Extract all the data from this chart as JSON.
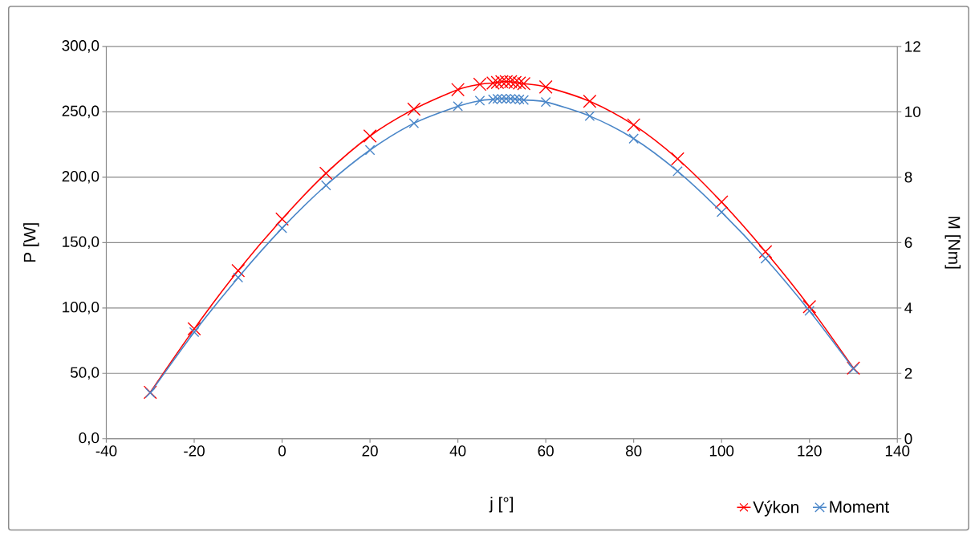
{
  "chart_data": {
    "type": "line",
    "xlabel": "j [°]",
    "ylabel": "P [W]",
    "y2label": "M [Nm]",
    "x": [
      -30,
      -20,
      -10,
      0,
      10,
      20,
      30,
      40,
      45,
      48,
      49,
      50,
      51,
      52,
      53,
      54,
      55,
      60,
      70,
      80,
      90,
      100,
      110,
      120,
      130
    ],
    "series": [
      {
        "name": "Výkon",
        "color": "#ff0000",
        "values": [
          35.5,
          84,
          128.5,
          168,
          203,
          231.5,
          252,
          267,
          271,
          272,
          272.5,
          273,
          273,
          273,
          272.5,
          272,
          271.5,
          269,
          258,
          240,
          214,
          181,
          143,
          101,
          54
        ]
      },
      {
        "name": "Moment",
        "color": "#4a86c8",
        "axis": "y2",
        "values": [
          1.4,
          3.26,
          4.93,
          6.44,
          7.75,
          8.83,
          9.65,
          10.17,
          10.34,
          10.38,
          10.4,
          10.4,
          10.4,
          10.4,
          10.39,
          10.38,
          10.36,
          10.3,
          9.87,
          9.18,
          8.18,
          6.93,
          5.51,
          3.91,
          2.14
        ]
      }
    ],
    "xlim": [
      -40,
      140
    ],
    "xticks": [
      -40,
      -20,
      0,
      20,
      40,
      60,
      80,
      100,
      120,
      140
    ],
    "ylim": [
      0,
      300
    ],
    "yticks": [
      {
        "value": 0,
        "label": "0,0"
      },
      {
        "value": 50,
        "label": "50,0"
      },
      {
        "value": 100,
        "label": "100,0"
      },
      {
        "value": 150,
        "label": "150,0"
      },
      {
        "value": 200,
        "label": "200,0"
      },
      {
        "value": 250,
        "label": "250,0"
      },
      {
        "value": 300,
        "label": "300,0"
      }
    ],
    "y2lim": [
      0,
      12
    ],
    "y2ticks": [
      0,
      2,
      4,
      6,
      8,
      10,
      12
    ],
    "grid": "y",
    "legend": "bottom right",
    "marker": "cross",
    "line_style": "solid"
  }
}
